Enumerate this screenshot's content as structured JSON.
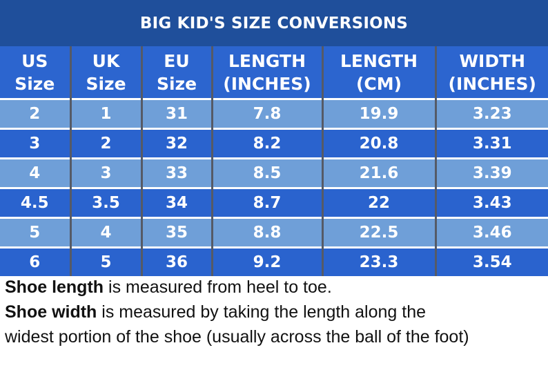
{
  "title": "BIG KID'S SIZE CONVERSIONS",
  "columns": [
    [
      "US",
      "Size"
    ],
    [
      "UK",
      "Size"
    ],
    [
      "EU",
      "Size"
    ],
    [
      "LENGTH",
      "(INCHES)"
    ],
    [
      "LENGTH",
      "(CM)"
    ],
    [
      "WIDTH",
      "(INCHES)"
    ]
  ],
  "rows": [
    [
      "2",
      "1",
      "31",
      "7.8",
      "19.9",
      "3.23"
    ],
    [
      "3",
      "2",
      "32",
      "8.2",
      "20.8",
      "3.31"
    ],
    [
      "4",
      "3",
      "33",
      "8.5",
      "21.6",
      "3.39"
    ],
    [
      "4.5",
      "3.5",
      "34",
      "8.7",
      "22",
      "3.43"
    ],
    [
      "5",
      "4",
      "35",
      "8.8",
      "22.5",
      "3.46"
    ],
    [
      "6",
      "5",
      "36",
      "9.2",
      "23.3",
      "3.54"
    ]
  ],
  "notes": [
    {
      "bold": "Shoe length",
      "text": " is measured from heel to toe."
    },
    {
      "bold": "Shoe width",
      "text": " is measured by taking the length along the"
    },
    {
      "bold": "",
      "text": "widest portion of the shoe (usually across the ball of the foot)"
    }
  ],
  "colors": {
    "title_bg": "#1f4f9b",
    "header_bg": "#2c65cf",
    "row_light": "#6f9fd8",
    "row_dark": "#2a63ce",
    "text_on_blue": "#ffffff"
  }
}
